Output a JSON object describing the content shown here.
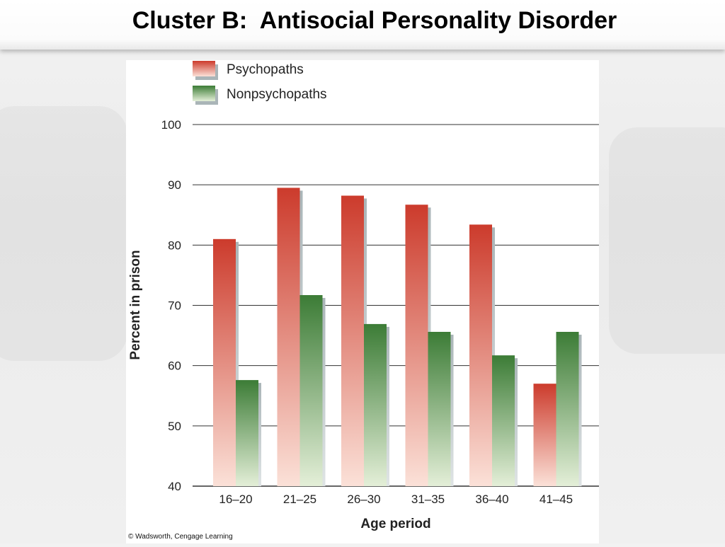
{
  "slide": {
    "title": "Cluster B:  Antisocial Personality Disorder"
  },
  "colors": {
    "psychopaths_top": "#cc3b2c",
    "psychopaths_bottom": "#fbe1d8",
    "nonpsychopaths_top": "#3c7c36",
    "nonpsychopaths_bottom": "#e4efd8",
    "shadow": "#aab5b8",
    "gridline": "#333333"
  },
  "chart_data": {
    "type": "bar",
    "categories": [
      "16–20",
      "21–25",
      "26–30",
      "31–35",
      "36–40",
      "41–45"
    ],
    "series": [
      {
        "name": "Psychopaths",
        "values": [
          81,
          89.5,
          88.2,
          86.7,
          83.4,
          57
        ]
      },
      {
        "name": "Nonpsychopaths",
        "values": [
          57.6,
          71.7,
          66.9,
          65.6,
          61.7,
          65.6
        ]
      }
    ],
    "xlabel": "Age period",
    "ylabel": "Percent in prison",
    "ylim": [
      40,
      100
    ],
    "yticks": [
      40,
      50,
      60,
      70,
      80,
      90,
      100
    ],
    "grid": true,
    "legend_position": "top-left",
    "credit": "© Wadsworth, Cengage Learning"
  }
}
